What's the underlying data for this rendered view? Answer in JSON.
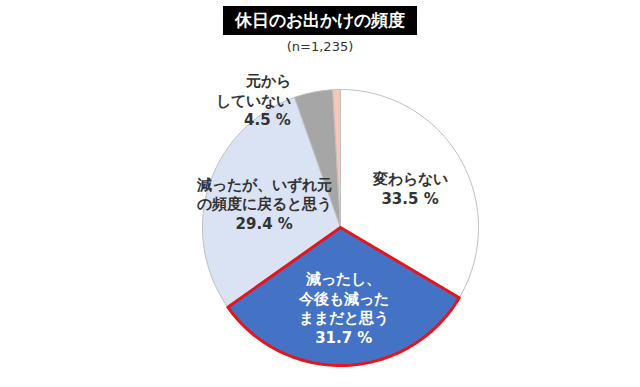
{
  "chart_data": {
    "type": "pie",
    "title": "休日のお出かけの頻度",
    "subtitle": "(n=1,235)",
    "categories": [
      "変わらない",
      "減ったし、\n今後も減った\nままだと思う",
      "減ったが、いずれ元\nの頻度に戻ると思う",
      "元から\nしていない",
      null
    ],
    "values": [
      33.5,
      31.7,
      29.4,
      4.5,
      0.9
    ],
    "value_labels": [
      "33.5 %",
      "31.7 %",
      "29.4 %",
      "4.5 %",
      null
    ],
    "colors": [
      "#ffffff",
      "#4472c4",
      "#dae3f3",
      "#a6a6a6",
      "#f4c7b8"
    ],
    "data_labels": true
  }
}
